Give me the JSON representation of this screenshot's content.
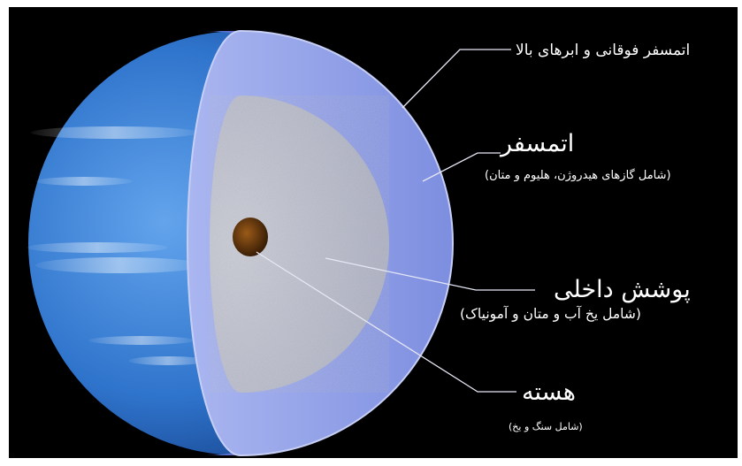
{
  "diagram": {
    "layers": [
      {
        "id": "upper",
        "title": "اتمسفر فوقانی و ابرهای بالا",
        "subtitle": ""
      },
      {
        "id": "atmosphere",
        "title": "اتمسفر",
        "subtitle": "(شامل گازهای هیدروژن، هلیوم و متان)"
      },
      {
        "id": "mantle",
        "title": "پوشش داخلی",
        "subtitle": "(شامل یخ آب و متان و آمونیاک)"
      },
      {
        "id": "core",
        "title": "هسته",
        "subtitle": "(شامل سنگ و یخ)"
      }
    ],
    "colors": {
      "background": "#000000",
      "planet": "#3a7fd0",
      "atmosphere": "#8fa0e6",
      "mantle": "#c4c6d2",
      "core": "#6a3d10",
      "leader": "#e6e8f5"
    }
  }
}
